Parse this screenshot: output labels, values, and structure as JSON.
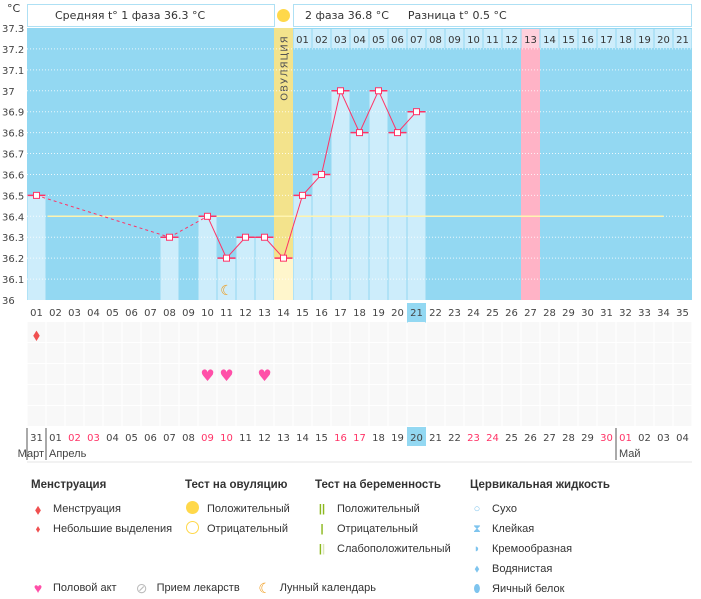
{
  "header": {
    "phase1": "Средняя t° 1 фаза 36.3 °C",
    "phase2": "2 фаза 36.8 °C",
    "diff": "Разница t° 0.5 °C",
    "unit": "°C",
    "ovulation_label": "ОВУЛЯЦИЯ"
  },
  "chart_data": {
    "type": "line",
    "ylabel": "°C",
    "ylim": [
      36,
      37.3
    ],
    "yticks": [
      "36",
      "36.1",
      "36.2",
      "36.3",
      "36.4",
      "36.5",
      "36.6",
      "36.7",
      "36.8",
      "36.9",
      "37",
      "37.1",
      "37.2",
      "37.3"
    ],
    "cycle_days": [
      "01",
      "02",
      "03",
      "04",
      "05",
      "06",
      "07",
      "08",
      "09",
      "10",
      "11",
      "12",
      "13",
      "14",
      "15",
      "16",
      "17",
      "18",
      "19",
      "20",
      "21",
      "22",
      "23",
      "24",
      "25",
      "26",
      "27",
      "28",
      "29",
      "30",
      "31",
      "32",
      "33",
      "34",
      "35"
    ],
    "next_cycle_days": [
      "01",
      "02",
      "03",
      "04",
      "05",
      "06",
      "07",
      "08",
      "09",
      "10",
      "11",
      "12",
      "13",
      "14",
      "15",
      "16",
      "17",
      "18",
      "19",
      "20",
      "21"
    ],
    "temperatures": [
      [
        1,
        36.5
      ],
      [
        8,
        36.3
      ],
      [
        10,
        36.4
      ],
      [
        11,
        36.2
      ],
      [
        12,
        36.3
      ],
      [
        13,
        36.3
      ],
      [
        14,
        36.2
      ],
      [
        15,
        36.5
      ],
      [
        16,
        36.6
      ],
      [
        17,
        37.0
      ],
      [
        18,
        36.8
      ],
      [
        19,
        37.0
      ],
      [
        20,
        36.8
      ],
      [
        21,
        36.9
      ]
    ],
    "coverline": 36.4,
    "ovulation_day": 14,
    "current_day": 21,
    "expected_period_day": 27,
    "menstruation_days": [
      1
    ],
    "intercourse_days": [
      10,
      11,
      13
    ],
    "moon_days": [
      11
    ],
    "dates": [
      "31",
      "01",
      "02",
      "03",
      "04",
      "05",
      "06",
      "07",
      "08",
      "09",
      "10",
      "11",
      "12",
      "13",
      "14",
      "15",
      "16",
      "17",
      "18",
      "19",
      "20",
      "21",
      "22",
      "23",
      "24",
      "25",
      "26",
      "27",
      "28",
      "29",
      "30",
      "01",
      "02",
      "03",
      "04"
    ],
    "weekend_dates_idx": [
      2,
      3,
      9,
      10,
      16,
      17,
      23,
      24,
      30,
      31
    ],
    "months": [
      {
        "name": "Март",
        "start": 0
      },
      {
        "name": "Апрель",
        "start": 1
      },
      {
        "name": "Май",
        "start": 31
      }
    ],
    "colors": {
      "background": "#93d8f2",
      "bar": "#cdedfb",
      "line": "#ff3366",
      "ovulation": "#f3e38c",
      "period": "#ffb3c6",
      "coverline": "#fff4b0",
      "weekend": "#ff3366"
    }
  },
  "legend": {
    "menstruation": {
      "title": "Менструация",
      "items": [
        "Менструация",
        "Небольшие выделения"
      ]
    },
    "ovulation_test": {
      "title": "Тест на овуляцию",
      "items": [
        "Положительный",
        "Отрицательный"
      ]
    },
    "pregnancy_test": {
      "title": "Тест на беременность",
      "items": [
        "Положительный",
        "Отрицательный",
        "Слабоположительный"
      ]
    },
    "cervical": {
      "title": "Цервикальная жидкость",
      "items": [
        "Сухо",
        "Клейкая",
        "Кремообразная",
        "Водянистая",
        "Яичный белок"
      ]
    },
    "other": [
      "Половой акт",
      "Прием лекарств",
      "Лунный календарь"
    ]
  }
}
